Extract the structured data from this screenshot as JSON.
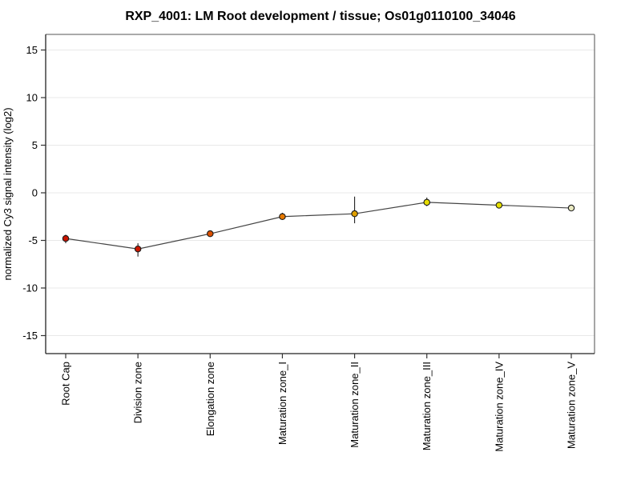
{
  "title": "RXP_4001: LM Root development / tissue; Os01g0110100_34046",
  "chart_data": {
    "type": "line",
    "title": "RXP_4001: LM Root development / tissue; Os01g0110100_34046",
    "xlabel": "",
    "ylabel": "normalized Cy3 signal intensity (log2)",
    "categories": [
      "Root Cap",
      "Division zone",
      "Elongation zone",
      "Maturation zone_I",
      "Maturation zone_II",
      "Maturation zone_III",
      "Maturation zone_IV",
      "Maturation zone_V"
    ],
    "series": [
      {
        "name": "normalized Cy3 signal intensity (log2)",
        "values": [
          -4.8,
          -5.9,
          -4.3,
          -2.5,
          -2.2,
          -1.0,
          -1.3,
          -1.6
        ],
        "errors_up": [
          0.4,
          0.6,
          0.3,
          0.4,
          1.8,
          0.5,
          0.2,
          0.2
        ],
        "errors_down": [
          0.5,
          0.8,
          0.3,
          0.3,
          1.0,
          0.4,
          0.2,
          0.2
        ],
        "point_colors": [
          "#C81400",
          "#CC1800",
          "#DC5000",
          "#E67800",
          "#E0A000",
          "#E6DC00",
          "#E6E000",
          "#E8E8C0"
        ]
      }
    ],
    "ylim": [
      -16.6,
      16.6
    ],
    "yticks": [
      -15,
      -10,
      -5,
      0,
      5,
      10,
      15
    ],
    "grid": true,
    "legend_position": "none",
    "colors": {
      "line": "#444444",
      "error_bar": "#222222",
      "grid": "#E8E8E8",
      "tick": "#333333",
      "axis_dark": "#222222",
      "axis_light": "#777777",
      "text": "#000000",
      "point_outline": "#1A1A1A",
      "background": "#FFFFFF"
    }
  }
}
